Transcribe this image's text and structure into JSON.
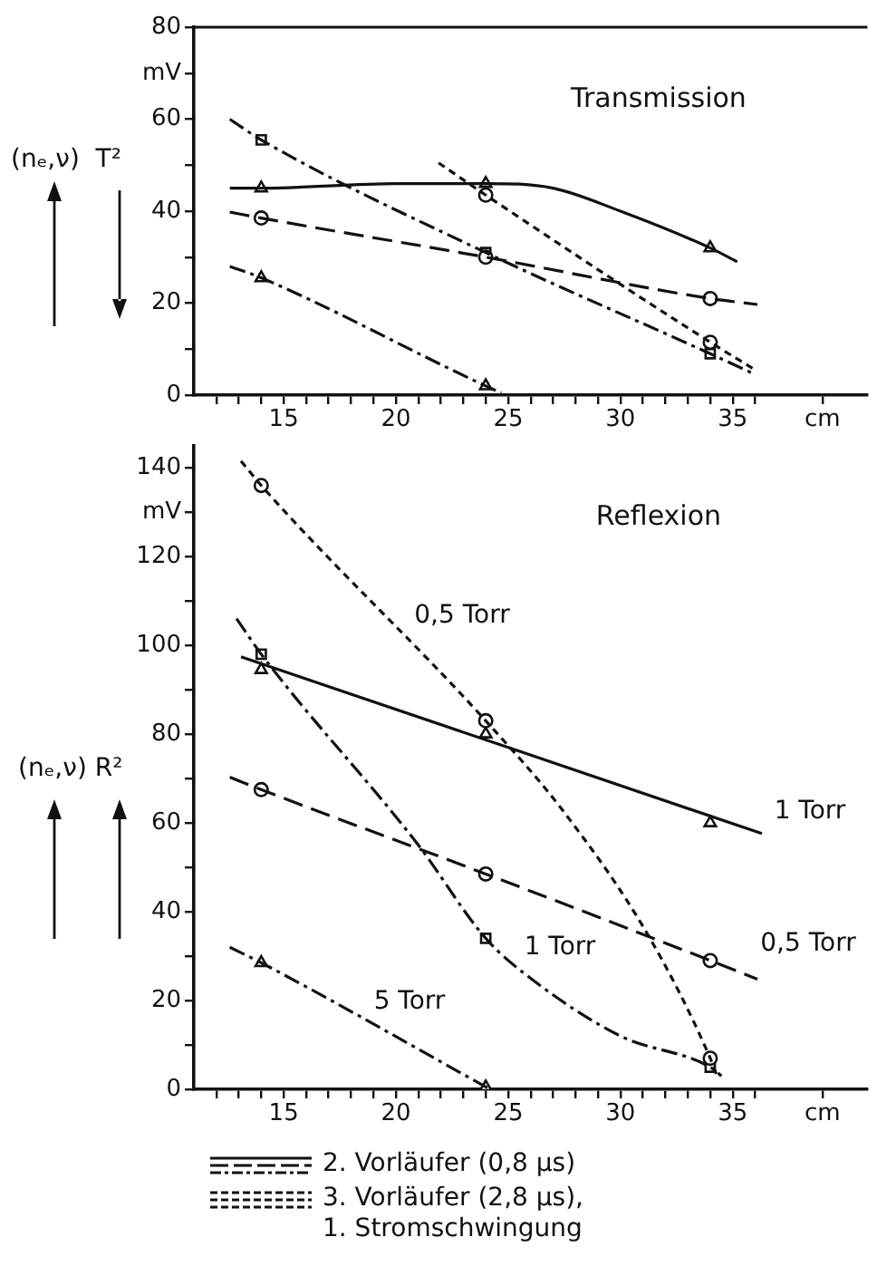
{
  "chart_data": [
    {
      "type": "line",
      "title": "Transmission",
      "ylabel": "(nₑ,ν)  T²",
      "xlim": [
        11,
        41
      ],
      "xticks": [
        {
          "value": 12,
          "label": null
        },
        {
          "value": 13,
          "label": null
        },
        {
          "value": 14,
          "label": null
        },
        15,
        {
          "value": 16,
          "label": null
        },
        {
          "value": 17,
          "label": null
        },
        {
          "value": 18,
          "label": null
        },
        {
          "value": 19,
          "label": null
        },
        20,
        {
          "value": 21,
          "label": null
        },
        {
          "value": 22,
          "label": null
        },
        {
          "value": 23,
          "label": null
        },
        {
          "value": 24,
          "label": null
        },
        25,
        {
          "value": 26,
          "label": null
        },
        {
          "value": 27,
          "label": null
        },
        {
          "value": 28,
          "label": null
        },
        {
          "value": 29,
          "label": null
        },
        30,
        {
          "value": 31,
          "label": null
        },
        {
          "value": 32,
          "label": null
        },
        {
          "value": 33,
          "label": null
        },
        {
          "value": 34,
          "label": null
        },
        35,
        {
          "value": 36,
          "label": null
        },
        {
          "value": 39,
          "label": "cm"
        }
      ],
      "ylim": [
        0,
        80
      ],
      "yticks": [
        0,
        {
          "value": 10,
          "label": null
        },
        20,
        {
          "value": 30,
          "label": null
        },
        40,
        {
          "value": 50,
          "label": null
        },
        60,
        {
          "value": 70,
          "label": "mV"
        },
        80
      ],
      "grid": false,
      "series": [
        {
          "color": "#111111",
          "line_style": "solid",
          "marker": "none",
          "x": [
            12.6,
            14,
            20,
            24,
            27,
            30,
            34,
            35.2
          ],
          "values": [
            45,
            45,
            46,
            46,
            45,
            40,
            32,
            29
          ]
        },
        {
          "color": "#111111",
          "line_style": "dashed",
          "marker": "none",
          "x": [
            12.6,
            14,
            24,
            34,
            36.1
          ],
          "values": [
            39.8,
            38.5,
            30,
            21,
            19.7
          ]
        },
        {
          "color": "#111111",
          "line_style": "dashdot",
          "marker": "none",
          "x": [
            12.6,
            14,
            24,
            34,
            36
          ],
          "values": [
            60,
            55.5,
            31,
            9,
            4.5
          ]
        },
        {
          "color": "#111111",
          "line_style": "dotted",
          "marker": "none",
          "x": [
            21.9,
            24,
            34,
            36
          ],
          "values": [
            50.5,
            43.5,
            11.5,
            5.5
          ]
        },
        {
          "color": "#111111",
          "line_style": "dashdot",
          "marker": "none",
          "x": [
            12.6,
            14,
            24,
            24.7
          ],
          "values": [
            28,
            25.5,
            2,
            0.5
          ]
        },
        {
          "type": "scatter",
          "color": "#111111",
          "marker": "triangle",
          "x": [
            14,
            24,
            34
          ],
          "values": [
            45,
            46,
            32
          ]
        },
        {
          "type": "scatter",
          "color": "#111111",
          "marker": "circle",
          "x": [
            14,
            24,
            34
          ],
          "values": [
            38.5,
            30,
            21
          ]
        },
        {
          "type": "scatter",
          "color": "#111111",
          "marker": "square",
          "x": [
            14,
            24,
            34
          ],
          "values": [
            55.5,
            31,
            9
          ]
        },
        {
          "type": "scatter",
          "color": "#111111",
          "marker": "circle",
          "x": [
            24,
            34
          ],
          "values": [
            43.5,
            11.5
          ]
        },
        {
          "type": "scatter",
          "color": "#111111",
          "marker": "triangle",
          "x": [
            14,
            24
          ],
          "values": [
            25.5,
            2
          ]
        }
      ]
    },
    {
      "type": "line",
      "title": "Reflexion",
      "ylabel": "(nₑ,ν) R²",
      "xlim": [
        11,
        41
      ],
      "xticks": [
        {
          "value": 12,
          "label": null
        },
        {
          "value": 13,
          "label": null
        },
        {
          "value": 14,
          "label": null
        },
        15,
        {
          "value": 16,
          "label": null
        },
        {
          "value": 17,
          "label": null
        },
        {
          "value": 18,
          "label": null
        },
        {
          "value": 19,
          "label": null
        },
        20,
        {
          "value": 21,
          "label": null
        },
        {
          "value": 22,
          "label": null
        },
        {
          "value": 23,
          "label": null
        },
        {
          "value": 24,
          "label": null
        },
        25,
        {
          "value": 26,
          "label": null
        },
        {
          "value": 27,
          "label": null
        },
        {
          "value": 28,
          "label": null
        },
        {
          "value": 29,
          "label": null
        },
        30,
        {
          "value": 31,
          "label": null
        },
        {
          "value": 32,
          "label": null
        },
        {
          "value": 33,
          "label": null
        },
        {
          "value": 34,
          "label": null
        },
        35,
        {
          "value": 36,
          "label": null
        },
        {
          "value": 39,
          "label": "cm"
        }
      ],
      "ylim": [
        0,
        145
      ],
      "yticks": [
        0,
        {
          "value": 10,
          "label": null
        },
        20,
        {
          "value": 30,
          "label": null
        },
        40,
        {
          "value": 50,
          "label": null
        },
        60,
        {
          "value": 70,
          "label": null
        },
        80,
        {
          "value": 90,
          "label": null
        },
        100,
        {
          "value": 110,
          "label": null
        },
        120,
        {
          "value": 130,
          "label": "mV"
        },
        140
      ],
      "grid": false,
      "annotations": [
        "2. Vorläufer (0,8 µs)",
        "3. Vorläufer (2,8 µs),\n1. Stromschwingung"
      ],
      "series": [
        {
          "name": "0,5 Torr",
          "color": "#111111",
          "line_style": "dotted",
          "marker": "none",
          "x": [
            13.1,
            14,
            24,
            27.4,
            31.2,
            34,
            34.3
          ],
          "values": [
            141.5,
            136,
            83,
            63,
            35,
            7,
            3
          ]
        },
        {
          "name": "1 Torr",
          "color": "#111111",
          "line_style": "solid",
          "marker": "none",
          "x": [
            13.1,
            36.3
          ],
          "values": [
            97.4,
            57.6
          ]
        },
        {
          "name": "0,5 Torr",
          "color": "#111111",
          "line_style": "dashed",
          "marker": "none",
          "x": [
            12.6,
            14,
            24,
            34,
            36.1
          ],
          "values": [
            70.3,
            67.5,
            48.5,
            29,
            24.8
          ]
        },
        {
          "name": "1 Torr",
          "color": "#111111",
          "line_style": "dashdot",
          "marker": "none",
          "x": [
            12.9,
            14,
            21,
            24,
            26,
            30,
            34,
            34.5
          ],
          "values": [
            106,
            98,
            55,
            34,
            25,
            12,
            5,
            3
          ]
        },
        {
          "name": "5 Torr",
          "color": "#111111",
          "line_style": "dashdot",
          "marker": "none",
          "x": [
            12.6,
            14,
            24.2
          ],
          "values": [
            32,
            28.5,
            0
          ]
        },
        {
          "type": "scatter",
          "color": "#111111",
          "marker": "circle",
          "x": [
            14,
            24,
            34
          ],
          "values": [
            136,
            83,
            7
          ]
        },
        {
          "type": "scatter",
          "color": "#111111",
          "marker": "triangle",
          "x": [
            14,
            24,
            34
          ],
          "values": [
            94.5,
            80,
            60
          ]
        },
        {
          "type": "scatter",
          "color": "#111111",
          "marker": "circle",
          "x": [
            14,
            24,
            34
          ],
          "values": [
            67.5,
            48.5,
            29
          ]
        },
        {
          "type": "scatter",
          "color": "#111111",
          "marker": "square",
          "x": [
            14,
            24,
            34
          ],
          "values": [
            98,
            34,
            5
          ]
        },
        {
          "type": "scatter",
          "color": "#111111",
          "marker": "triangle",
          "x": [
            14,
            24
          ],
          "values": [
            28.5,
            0.5
          ]
        }
      ]
    }
  ]
}
